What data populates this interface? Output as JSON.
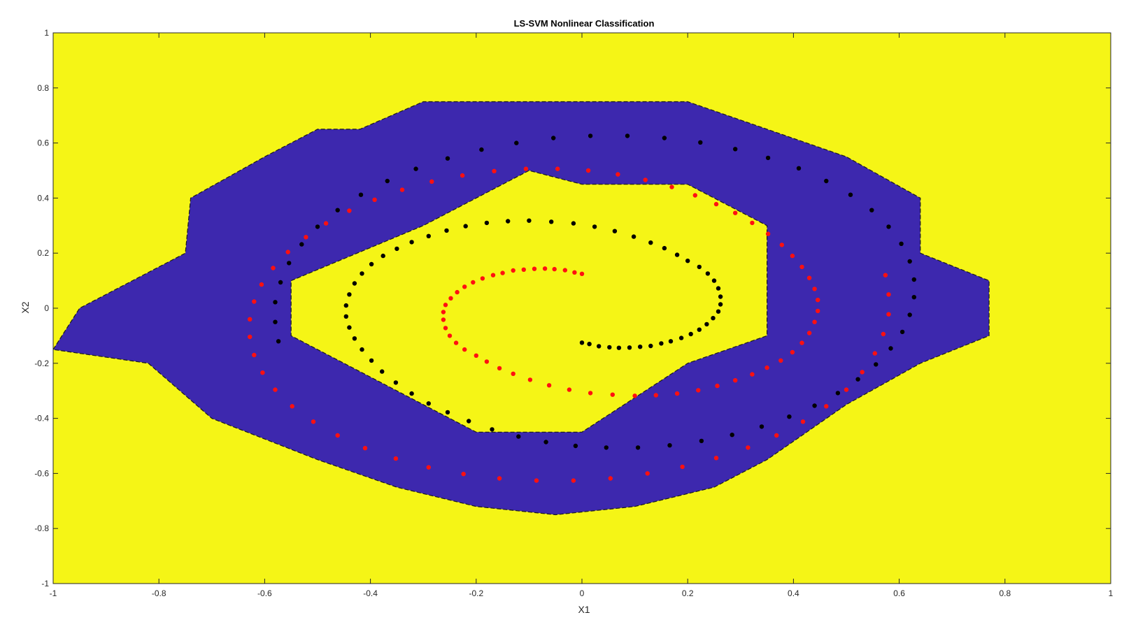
{
  "chart_data": {
    "type": "scatter",
    "title": "LS-SVM Nonlinear Classification",
    "xlabel": "X1",
    "ylabel": "X2",
    "xlim": [
      -1,
      1
    ],
    "ylim": [
      -1,
      1
    ],
    "xticks": [
      -1,
      -0.8,
      -0.6,
      -0.4,
      -0.2,
      0,
      0.2,
      0.4,
      0.6,
      0.8,
      1
    ],
    "xtick_labels": [
      "-1",
      "-0.8",
      "-0.6",
      "-0.4",
      "-0.2",
      "0",
      "0.2",
      "0.4",
      "0.6",
      "0.8",
      "1"
    ],
    "yticks": [
      -1,
      -0.8,
      -0.6,
      -0.4,
      -0.2,
      0,
      0.2,
      0.4,
      0.6,
      0.8,
      1
    ],
    "ytick_labels": [
      "-1",
      "-0.8",
      "-0.6",
      "-0.4",
      "-0.2",
      "0",
      "0.2",
      "0.4",
      "0.6",
      "0.8",
      "1"
    ],
    "grid": false,
    "legend": "none",
    "colors": {
      "region_positive": "#F5F516",
      "region_negative": "#3D28AE",
      "series_black": "#000000",
      "series_red": "#FF1010",
      "boundary": "#1a1a1a"
    },
    "regions": [
      {
        "class": "negative",
        "polygon": [
          [
            -1,
            -0.15
          ],
          [
            -0.95,
            0.0
          ],
          [
            -0.85,
            0.1
          ],
          [
            -0.75,
            0.2
          ],
          [
            -0.74,
            0.4
          ],
          [
            -0.6,
            0.55
          ],
          [
            -0.5,
            0.65
          ],
          [
            -0.42,
            0.65
          ],
          [
            -0.3,
            0.75
          ],
          [
            0.2,
            0.75
          ],
          [
            0.5,
            0.55
          ],
          [
            0.64,
            0.4
          ],
          [
            0.64,
            0.2
          ],
          [
            0.77,
            0.1
          ],
          [
            0.77,
            -0.1
          ],
          [
            0.64,
            -0.2
          ],
          [
            0.5,
            -0.35
          ],
          [
            0.35,
            -0.55
          ],
          [
            0.25,
            -0.65
          ],
          [
            0.1,
            -0.72
          ],
          [
            -0.05,
            -0.75
          ],
          [
            -0.2,
            -0.72
          ],
          [
            -0.35,
            -0.65
          ],
          [
            -0.5,
            -0.55
          ],
          [
            -0.7,
            -0.4
          ],
          [
            -0.82,
            -0.2
          ],
          [
            -1,
            -0.15
          ]
        ]
      },
      {
        "class": "positive",
        "polygon": [
          [
            -0.55,
            0.1
          ],
          [
            -0.3,
            0.3
          ],
          [
            -0.1,
            0.5
          ],
          [
            0.0,
            0.45
          ],
          [
            0.2,
            0.45
          ],
          [
            0.35,
            0.3
          ],
          [
            0.35,
            -0.1
          ],
          [
            0.2,
            -0.2
          ],
          [
            0.0,
            -0.45
          ],
          [
            -0.2,
            -0.45
          ],
          [
            -0.35,
            -0.3
          ],
          [
            -0.45,
            -0.2
          ],
          [
            -0.55,
            -0.1
          ]
        ]
      }
    ],
    "series": [
      {
        "class": "black",
        "points": [
          [
            0.0,
            -0.125
          ],
          [
            0.014,
            -0.13
          ],
          [
            0.032,
            -0.138
          ],
          [
            0.052,
            -0.142
          ],
          [
            0.07,
            -0.144
          ],
          [
            0.09,
            -0.143
          ],
          [
            0.11,
            -0.14
          ],
          [
            0.13,
            -0.137
          ],
          [
            0.15,
            -0.128
          ],
          [
            0.168,
            -0.12
          ],
          [
            0.188,
            -0.108
          ],
          [
            0.206,
            -0.094
          ],
          [
            0.222,
            -0.078
          ],
          [
            0.236,
            -0.058
          ],
          [
            0.248,
            -0.036
          ],
          [
            0.258,
            -0.012
          ],
          [
            0.262,
            0.014
          ],
          [
            0.262,
            0.042
          ],
          [
            0.258,
            0.072
          ],
          [
            0.25,
            0.1
          ],
          [
            0.238,
            0.126
          ],
          [
            0.222,
            0.15
          ],
          [
            0.2,
            0.172
          ],
          [
            0.18,
            0.194
          ],
          [
            0.156,
            0.218
          ],
          [
            0.13,
            0.238
          ],
          [
            0.098,
            0.26
          ],
          [
            0.062,
            0.28
          ],
          [
            0.024,
            0.296
          ],
          [
            -0.016,
            0.308
          ],
          [
            -0.058,
            0.314
          ],
          [
            -0.1,
            0.318
          ],
          [
            -0.14,
            0.316
          ],
          [
            -0.18,
            0.31
          ],
          [
            -0.22,
            0.298
          ],
          [
            -0.256,
            0.282
          ],
          [
            -0.29,
            0.262
          ],
          [
            -0.322,
            0.24
          ],
          [
            -0.35,
            0.216
          ],
          [
            -0.376,
            0.19
          ],
          [
            -0.398,
            0.16
          ],
          [
            -0.416,
            0.126
          ],
          [
            -0.43,
            0.09
          ],
          [
            -0.44,
            0.05
          ],
          [
            -0.446,
            0.01
          ],
          [
            -0.446,
            -0.03
          ],
          [
            -0.44,
            -0.07
          ],
          [
            -0.43,
            -0.11
          ],
          [
            -0.416,
            -0.15
          ],
          [
            -0.398,
            -0.19
          ],
          [
            -0.378,
            -0.23
          ],
          [
            -0.352,
            -0.27
          ],
          [
            -0.322,
            -0.31
          ],
          [
            -0.29,
            -0.346
          ],
          [
            -0.254,
            -0.378
          ],
          [
            -0.214,
            -0.41
          ],
          [
            -0.17,
            -0.44
          ],
          [
            -0.12,
            -0.466
          ],
          [
            -0.068,
            -0.486
          ],
          [
            -0.012,
            -0.5
          ],
          [
            0.046,
            -0.506
          ],
          [
            0.106,
            -0.506
          ],
          [
            0.166,
            -0.498
          ],
          [
            0.226,
            -0.482
          ],
          [
            0.284,
            -0.46
          ],
          [
            0.34,
            -0.43
          ],
          [
            0.392,
            -0.394
          ],
          [
            0.44,
            -0.354
          ],
          [
            0.484,
            -0.308
          ],
          [
            0.522,
            -0.258
          ],
          [
            0.556,
            -0.204
          ],
          [
            0.584,
            -0.146
          ],
          [
            0.606,
            -0.086
          ],
          [
            0.62,
            -0.024
          ],
          [
            0.628,
            0.04
          ],
          [
            0.628,
            0.104
          ],
          [
            0.62,
            0.17
          ],
          [
            0.604,
            0.234
          ],
          [
            0.58,
            0.296
          ],
          [
            0.548,
            0.356
          ],
          [
            0.508,
            0.412
          ],
          [
            0.462,
            0.462
          ],
          [
            0.41,
            0.508
          ],
          [
            0.352,
            0.546
          ],
          [
            0.29,
            0.578
          ],
          [
            0.224,
            0.602
          ],
          [
            0.156,
            0.618
          ],
          [
            0.086,
            0.626
          ],
          [
            0.016,
            0.626
          ],
          [
            -0.054,
            0.618
          ],
          [
            -0.124,
            0.6
          ],
          [
            -0.19,
            0.576
          ],
          [
            -0.254,
            0.544
          ],
          [
            -0.314,
            0.506
          ],
          [
            -0.368,
            0.462
          ],
          [
            -0.418,
            0.412
          ],
          [
            -0.462,
            0.356
          ],
          [
            -0.5,
            0.296
          ],
          [
            -0.53,
            0.232
          ],
          [
            -0.554,
            0.164
          ],
          [
            -0.57,
            0.094
          ],
          [
            -0.58,
            0.022
          ],
          [
            -0.58,
            -0.05
          ],
          [
            -0.574,
            -0.12
          ]
        ]
      },
      {
        "class": "red",
        "points": [
          [
            0.0,
            0.125
          ],
          [
            -0.014,
            0.13
          ],
          [
            -0.032,
            0.138
          ],
          [
            -0.052,
            0.142
          ],
          [
            -0.07,
            0.144
          ],
          [
            -0.09,
            0.143
          ],
          [
            -0.11,
            0.14
          ],
          [
            -0.13,
            0.137
          ],
          [
            -0.15,
            0.128
          ],
          [
            -0.168,
            0.12
          ],
          [
            -0.188,
            0.108
          ],
          [
            -0.206,
            0.094
          ],
          [
            -0.222,
            0.078
          ],
          [
            -0.236,
            0.058
          ],
          [
            -0.248,
            0.036
          ],
          [
            -0.258,
            0.012
          ],
          [
            -0.262,
            -0.014
          ],
          [
            -0.262,
            -0.042
          ],
          [
            -0.258,
            -0.072
          ],
          [
            -0.25,
            -0.1
          ],
          [
            -0.238,
            -0.126
          ],
          [
            -0.222,
            -0.15
          ],
          [
            -0.2,
            -0.172
          ],
          [
            -0.18,
            -0.194
          ],
          [
            -0.156,
            -0.218
          ],
          [
            -0.13,
            -0.238
          ],
          [
            -0.098,
            -0.26
          ],
          [
            -0.062,
            -0.28
          ],
          [
            -0.024,
            -0.296
          ],
          [
            0.016,
            -0.308
          ],
          [
            0.058,
            -0.314
          ],
          [
            0.1,
            -0.318
          ],
          [
            0.14,
            -0.316
          ],
          [
            0.18,
            -0.31
          ],
          [
            0.22,
            -0.298
          ],
          [
            0.256,
            -0.282
          ],
          [
            0.29,
            -0.262
          ],
          [
            0.322,
            -0.24
          ],
          [
            0.35,
            -0.216
          ],
          [
            0.376,
            -0.19
          ],
          [
            0.398,
            -0.16
          ],
          [
            0.416,
            -0.126
          ],
          [
            0.43,
            -0.09
          ],
          [
            0.44,
            -0.05
          ],
          [
            0.446,
            -0.01
          ],
          [
            0.446,
            0.03
          ],
          [
            0.44,
            0.07
          ],
          [
            0.43,
            0.11
          ],
          [
            0.416,
            0.15
          ],
          [
            0.398,
            0.19
          ],
          [
            0.378,
            0.23
          ],
          [
            0.352,
            0.27
          ],
          [
            0.322,
            0.31
          ],
          [
            0.29,
            0.346
          ],
          [
            0.254,
            0.378
          ],
          [
            0.214,
            0.41
          ],
          [
            0.17,
            0.44
          ],
          [
            0.12,
            0.466
          ],
          [
            0.068,
            0.486
          ],
          [
            0.012,
            0.5
          ],
          [
            -0.046,
            0.506
          ],
          [
            -0.106,
            0.506
          ],
          [
            -0.166,
            0.498
          ],
          [
            -0.226,
            0.482
          ],
          [
            -0.284,
            0.46
          ],
          [
            -0.34,
            0.43
          ],
          [
            -0.392,
            0.394
          ],
          [
            -0.44,
            0.354
          ],
          [
            -0.484,
            0.308
          ],
          [
            -0.522,
            0.258
          ],
          [
            -0.556,
            0.204
          ],
          [
            -0.584,
            0.146
          ],
          [
            -0.606,
            0.086
          ],
          [
            -0.62,
            0.024
          ],
          [
            -0.628,
            -0.04
          ],
          [
            -0.628,
            -0.104
          ],
          [
            -0.62,
            -0.17
          ],
          [
            -0.604,
            -0.234
          ],
          [
            -0.58,
            -0.296
          ],
          [
            -0.548,
            -0.356
          ],
          [
            -0.508,
            -0.412
          ],
          [
            -0.462,
            -0.462
          ],
          [
            -0.41,
            -0.508
          ],
          [
            -0.352,
            -0.546
          ],
          [
            -0.29,
            -0.578
          ],
          [
            -0.224,
            -0.602
          ],
          [
            -0.156,
            -0.618
          ],
          [
            -0.086,
            -0.626
          ],
          [
            -0.016,
            -0.626
          ],
          [
            0.054,
            -0.618
          ],
          [
            0.124,
            -0.6
          ],
          [
            0.19,
            -0.576
          ],
          [
            0.254,
            -0.544
          ],
          [
            0.314,
            -0.506
          ],
          [
            0.368,
            -0.462
          ],
          [
            0.418,
            -0.412
          ],
          [
            0.462,
            -0.356
          ],
          [
            0.5,
            -0.296
          ],
          [
            0.53,
            -0.232
          ],
          [
            0.554,
            -0.164
          ],
          [
            0.57,
            -0.094
          ],
          [
            0.58,
            -0.022
          ],
          [
            0.58,
            0.05
          ],
          [
            0.574,
            0.12
          ]
        ]
      }
    ]
  }
}
